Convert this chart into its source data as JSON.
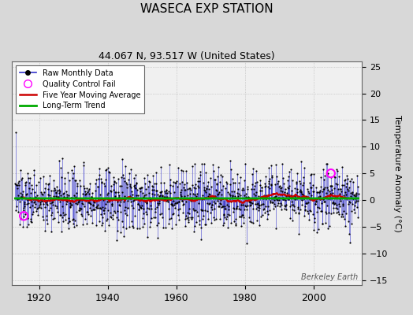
{
  "title": "WASECA EXP STATION",
  "subtitle": "44.067 N, 93.517 W (United States)",
  "ylabel": "Temperature Anomaly (°C)",
  "xlim": [
    1912,
    2014
  ],
  "ylim": [
    -16,
    26
  ],
  "yticks": [
    -15,
    -10,
    -5,
    0,
    5,
    10,
    15,
    20,
    25
  ],
  "xticks": [
    1920,
    1940,
    1960,
    1980,
    2000
  ],
  "bg_color": "#d8d8d8",
  "plot_bg_color": "#f0f0f0",
  "raw_line_color": "#3333cc",
  "raw_dot_color": "#000000",
  "moving_avg_color": "#cc0000",
  "trend_color": "#00aa00",
  "qc_fail_color": "#ff00ff",
  "watermark": "Berkeley Earth",
  "seed": 137,
  "start_year": 1913,
  "end_year": 2013,
  "noise_std": 2.8,
  "trend_slope": 0.003
}
